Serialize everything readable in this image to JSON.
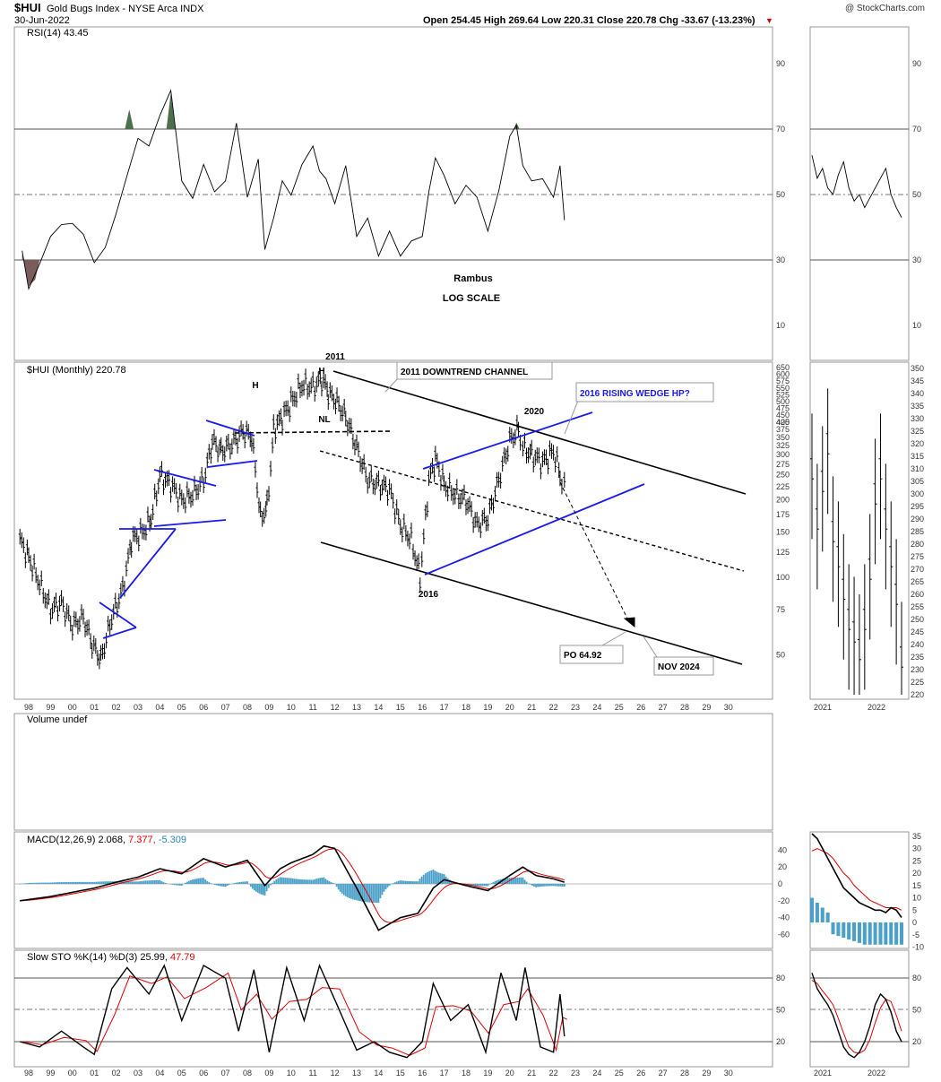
{
  "header": {
    "symbol": "$HUI",
    "description": "Gold Bugs Index - NYSE Arca  INDX",
    "date": "30-Jun-2022",
    "watermark": "@ StockCharts.com",
    "ohlc": "Open 254.45  High 269.64  Low 220.31  Close 220.78  Chg -33.67 (-13.23%)",
    "down_marker": "▼"
  },
  "colors": {
    "trendline": "#0000dd",
    "rsi_overbought": "#4e6e4e",
    "rsi_oversold": "#7a5c5c",
    "macd_signal": "#e00000",
    "histogram": "#4aa0c8"
  },
  "x_labels": [
    "98",
    "99",
    "00",
    "01",
    "02",
    "03",
    "04",
    "05",
    "06",
    "07",
    "08",
    "09",
    "10",
    "11",
    "12",
    "13",
    "14",
    "15",
    "16",
    "17",
    "18",
    "19",
    "20",
    "21",
    "22",
    "23",
    "24",
    "25",
    "26",
    "27",
    "28",
    "29",
    "30"
  ],
  "side_x_labels": [
    "2021",
    "2022"
  ],
  "panels": {
    "rsi": {
      "label": "RSI(14) 43.45",
      "ticks": [
        "90",
        "70",
        "50",
        "30",
        "10"
      ],
      "notes": [
        "Rambus",
        "LOG SCALE"
      ]
    },
    "price": {
      "label": "$HUI (Monthly) 220.78",
      "ticks": [
        "650",
        "600",
        "575",
        "550",
        "525",
        "500",
        "475",
        "450",
        "425",
        "400",
        "375",
        "350",
        "325",
        "300",
        "275",
        "250",
        "225",
        "200",
        "175",
        "150",
        "125",
        "100",
        "75",
        "50"
      ],
      "side_ticks": [
        "350",
        "345",
        "340",
        "335",
        "330",
        "325",
        "320",
        "315",
        "310",
        "305",
        "300",
        "295",
        "290",
        "285",
        "280",
        "275",
        "270",
        "265",
        "260",
        "255",
        "250",
        "245",
        "240",
        "235",
        "230",
        "225",
        "220"
      ]
    },
    "volume": {
      "label": "Volume undef"
    },
    "macd": {
      "label": "MACD(12,26,9) 2.068,",
      "value_signal": "7.377,",
      "value_hist": "-5.309",
      "ticks": [
        "40",
        "20",
        "0",
        "-20",
        "-40",
        "-60"
      ],
      "side_ticks": [
        "35",
        "30",
        "25",
        "20",
        "15",
        "10",
        "5",
        "0",
        "-5",
        "-10"
      ]
    },
    "sto": {
      "label": "Slow STO %K(14) %D(3)",
      "value_k": "25.99,",
      "value_d": "47.79",
      "ticks": [
        "80",
        "50",
        "20"
      ]
    }
  },
  "annotations": {
    "top_2011": "2011",
    "h1": "H",
    "h2": "H",
    "nl": "NL",
    "downtrend": "2011 DOWNTREND CHANNEL",
    "wedge": "2016 RISING WEDGE HP?",
    "y2020": "2020",
    "y2016": "2016",
    "po": "PO 64.92",
    "nov": "NOV 2024"
  },
  "chart_data": [
    {
      "type": "line",
      "title": "RSI(14)",
      "ylim": [
        0,
        100
      ],
      "x_unit": "year",
      "series": [
        {
          "name": "RSI(14)",
          "x": [
            1997.7,
            1998.0,
            1998.5,
            1999.0,
            1999.5,
            2000.0,
            2000.5,
            2001.0,
            2001.5,
            2002.0,
            2002.5,
            2003.0,
            2003.5,
            2004.0,
            2004.5,
            2005.0,
            2005.5,
            2006.0,
            2006.5,
            2007.0,
            2007.5,
            2008.0,
            2008.5,
            2008.8,
            2009.2,
            2009.6,
            2010.0,
            2010.5,
            2011.0,
            2011.3,
            2011.6,
            2012.0,
            2012.5,
            2013.0,
            2013.5,
            2014.0,
            2014.5,
            2015.0,
            2015.5,
            2016.0,
            2016.3,
            2016.6,
            2017.0,
            2017.5,
            2018.0,
            2018.5,
            2019.0,
            2019.5,
            2020.0,
            2020.3,
            2020.6,
            2021.0,
            2021.5,
            2022.0,
            2022.3,
            2022.5
          ],
          "y": [
            32,
            22,
            28,
            38,
            40,
            42,
            37,
            30,
            33,
            45,
            55,
            68,
            64,
            75,
            81,
            55,
            48,
            60,
            50,
            55,
            71,
            50,
            60,
            34,
            42,
            55,
            49,
            60,
            64,
            58,
            54,
            48,
            58,
            38,
            42,
            32,
            38,
            32,
            35,
            38,
            50,
            62,
            55,
            48,
            52,
            50,
            38,
            52,
            67,
            72,
            58,
            55,
            54,
            50,
            58,
            43
          ]
        }
      ]
    },
    {
      "type": "bar",
      "title": "$HUI (Monthly)",
      "yscale": "log",
      "x_unit": "year",
      "series": [
        {
          "name": "$HUI",
          "x": [
            1997.6,
            1998.0,
            1998.5,
            1999.0,
            1999.5,
            2000.0,
            2000.5,
            2000.9,
            2001.3,
            2001.8,
            2002.3,
            2002.7,
            2003.2,
            2003.6,
            2004.0,
            2004.5,
            2005.0,
            2005.5,
            2006.0,
            2006.4,
            2006.8,
            2007.3,
            2007.8,
            2008.2,
            2008.6,
            2008.9,
            2009.2,
            2009.6,
            2010.0,
            2010.5,
            2011.0,
            2011.4,
            2011.7,
            2012.1,
            2012.5,
            2013.0,
            2013.5,
            2014.0,
            2014.5,
            2015.0,
            2015.5,
            2015.9,
            2016.3,
            2016.6,
            2017.0,
            2017.5,
            2018.0,
            2018.5,
            2019.0,
            2019.5,
            2020.0,
            2020.4,
            2020.6,
            2021.0,
            2021.5,
            2022.0,
            2022.3,
            2022.5
          ],
          "y": [
            140,
            120,
            95,
            75,
            80,
            65,
            70,
            55,
            48,
            70,
            90,
            140,
            150,
            170,
            250,
            230,
            200,
            210,
            240,
            340,
            310,
            330,
            370,
            350,
            170,
            190,
            380,
            420,
            480,
            560,
            550,
            590,
            520,
            480,
            420,
            320,
            240,
            230,
            220,
            160,
            140,
            100,
            240,
            290,
            230,
            210,
            200,
            160,
            170,
            240,
            340,
            380,
            320,
            300,
            280,
            310,
            250,
            220
          ]
        }
      ]
    },
    {
      "type": "line",
      "title": "MACD(12,26,9)",
      "ylim": [
        -70,
        50
      ],
      "x_unit": "year",
      "series": [
        {
          "name": "MACD",
          "x": [
            1997.6,
            1999.0,
            2000.0,
            2001.0,
            2002.0,
            2003.0,
            2004.0,
            2005.0,
            2006.0,
            2007.0,
            2008.0,
            2008.8,
            2009.5,
            2010.0,
            2011.0,
            2011.5,
            2012.0,
            2013.0,
            2014.0,
            2015.0,
            2015.8,
            2016.5,
            2017.0,
            2018.0,
            2019.0,
            2020.0,
            2020.6,
            2021.2,
            2022.0,
            2022.5
          ],
          "y": [
            -20,
            -15,
            -10,
            -5,
            2,
            8,
            18,
            12,
            30,
            20,
            28,
            -2,
            18,
            25,
            35,
            45,
            42,
            -5,
            -55,
            -40,
            -35,
            -5,
            5,
            -2,
            -8,
            10,
            20,
            10,
            6,
            2
          ]
        }
      ]
    },
    {
      "type": "line",
      "title": "Slow STO %K(14) %D(3)",
      "ylim": [
        0,
        100
      ],
      "x_unit": "year",
      "series": [
        {
          "name": "%K",
          "x": [
            1997.6,
            1998.5,
            1999.5,
            2000.5,
            2001.0,
            2001.8,
            2002.5,
            2003.5,
            2004.2,
            2005.0,
            2006.0,
            2007.0,
            2007.6,
            2008.3,
            2009.0,
            2009.8,
            2010.6,
            2011.3,
            2012.1,
            2013.0,
            2013.8,
            2014.5,
            2015.3,
            2016.0,
            2016.5,
            2017.3,
            2018.1,
            2018.9,
            2019.6,
            2020.3,
            2020.7,
            2021.4,
            2022.0,
            2022.3,
            2022.5
          ],
          "y": [
            20,
            15,
            30,
            15,
            8,
            70,
            90,
            65,
            92,
            40,
            92,
            80,
            30,
            88,
            10,
            90,
            40,
            92,
            55,
            12,
            20,
            10,
            5,
            20,
            75,
            40,
            55,
            10,
            85,
            40,
            90,
            15,
            10,
            65,
            25
          ]
        }
      ]
    }
  ]
}
